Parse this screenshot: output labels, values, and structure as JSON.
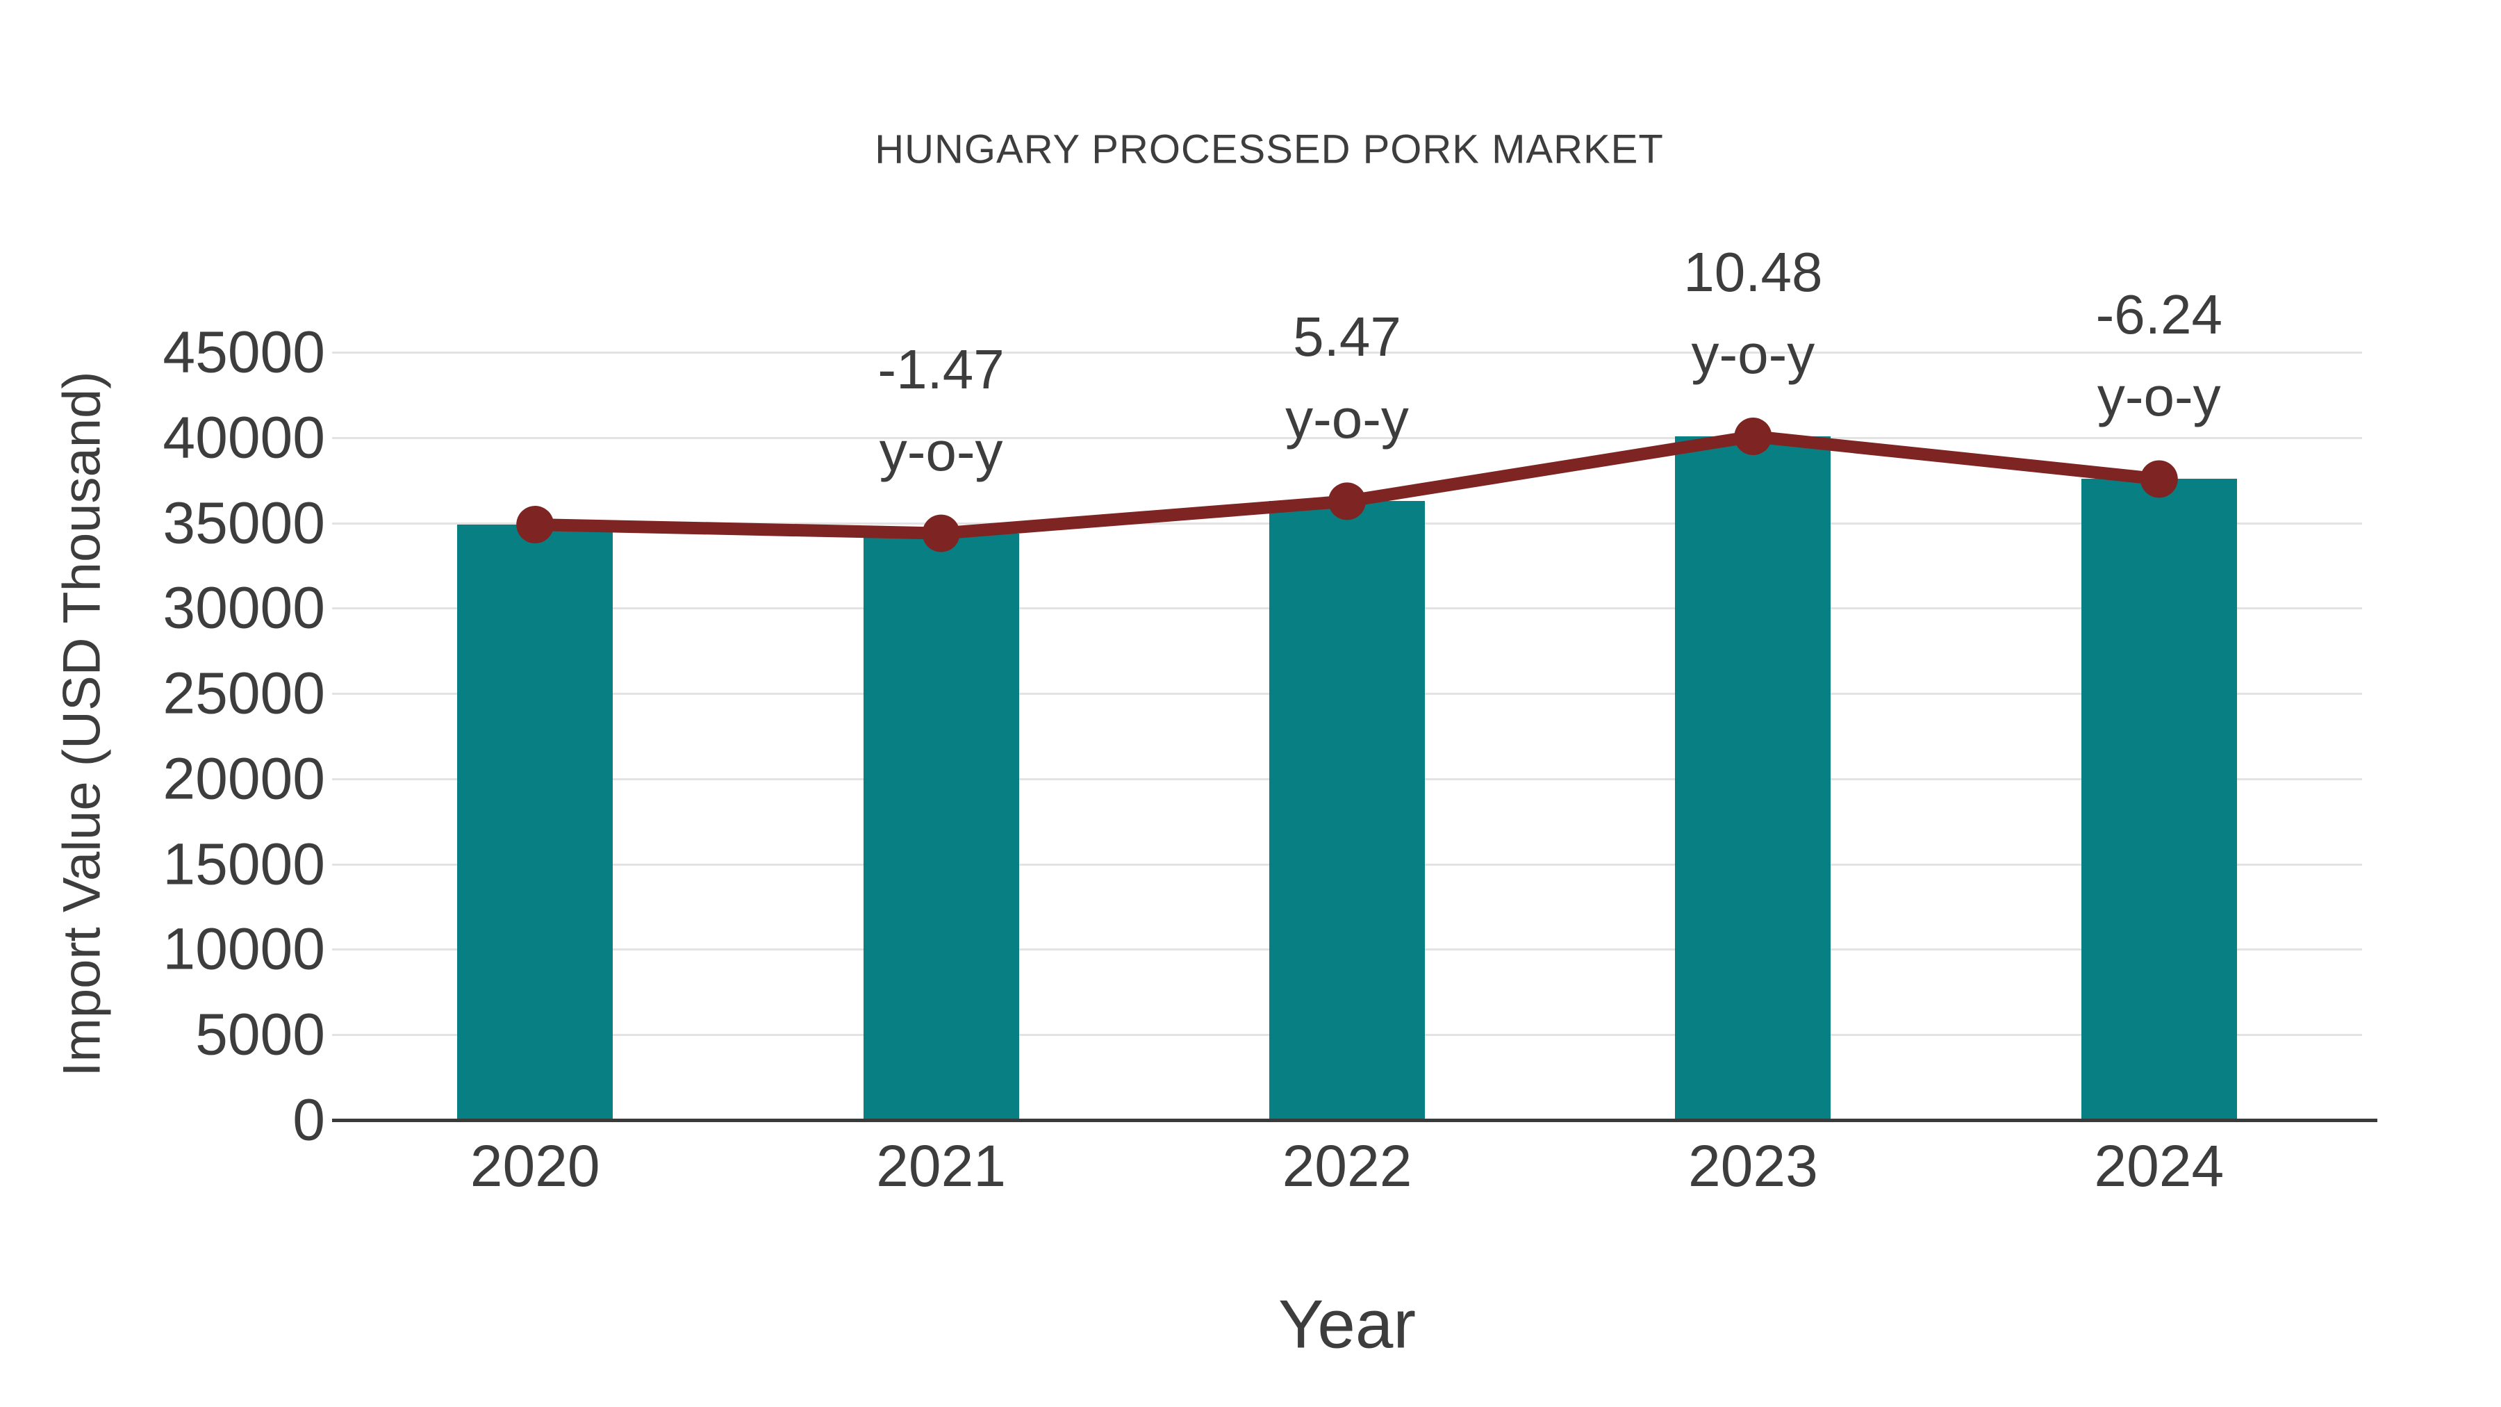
{
  "title": "HUNGARY PROCESSED PORK MARKET",
  "chart_data": {
    "type": "bar",
    "title": "HUNGARY PROCESSED PORK MARKET",
    "xlabel": "Year",
    "ylabel": "Import Value (USD Thousand)",
    "categories": [
      "2020",
      "2021",
      "2022",
      "2023",
      "2024"
    ],
    "series": [
      {
        "name": "Import Value (bar)",
        "type": "bar",
        "values": [
          34900,
          34387,
          36269,
          40070,
          37570
        ]
      },
      {
        "name": "Import Value trend (line)",
        "type": "line",
        "values": [
          34900,
          34387,
          36269,
          40070,
          37570
        ]
      }
    ],
    "annotations": [
      {
        "category": "2021",
        "value": "-1.47",
        "label": "y-o-y"
      },
      {
        "category": "2022",
        "value": "5.47",
        "label": "y-o-y"
      },
      {
        "category": "2023",
        "value": "10.48",
        "label": "y-o-y"
      },
      {
        "category": "2024",
        "value": "-6.24",
        "label": "y-o-y"
      }
    ],
    "yticks": [
      0,
      5000,
      10000,
      15000,
      20000,
      25000,
      30000,
      35000,
      40000,
      45000
    ],
    "ylim": [
      0,
      45000
    ],
    "grid": "horizontal",
    "legend": "none"
  },
  "colors": {
    "bar": "#088083",
    "line": "#7E2423",
    "marker": "#7E2423",
    "text": "#3d3d3d",
    "gridline": "#e3e3e3",
    "axis": "#3a3a3a",
    "background": "#ffffff"
  }
}
